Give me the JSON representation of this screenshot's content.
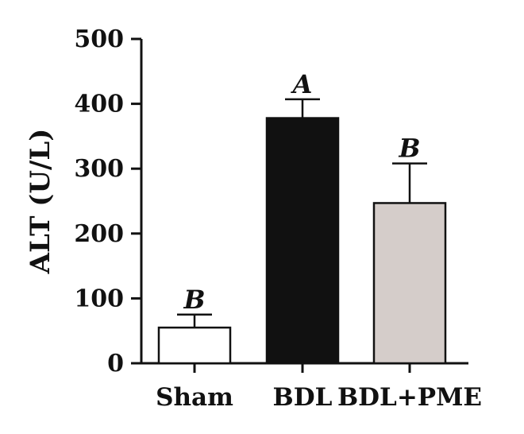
{
  "chart_data": {
    "type": "bar",
    "title": "",
    "xlabel": "",
    "ylabel": "ALT (U/L)",
    "ylim": [
      0,
      500
    ],
    "yticks": [
      0,
      100,
      200,
      300,
      400,
      500
    ],
    "grid": false,
    "categories": [
      "Sham",
      "BDL",
      "BDL+PME"
    ],
    "values": [
      55,
      378,
      247
    ],
    "errors": [
      20,
      29,
      61
    ],
    "significance": [
      "B",
      "A",
      "B"
    ],
    "colors": [
      "#ffffff",
      "#111111",
      "#d5cdca"
    ]
  }
}
